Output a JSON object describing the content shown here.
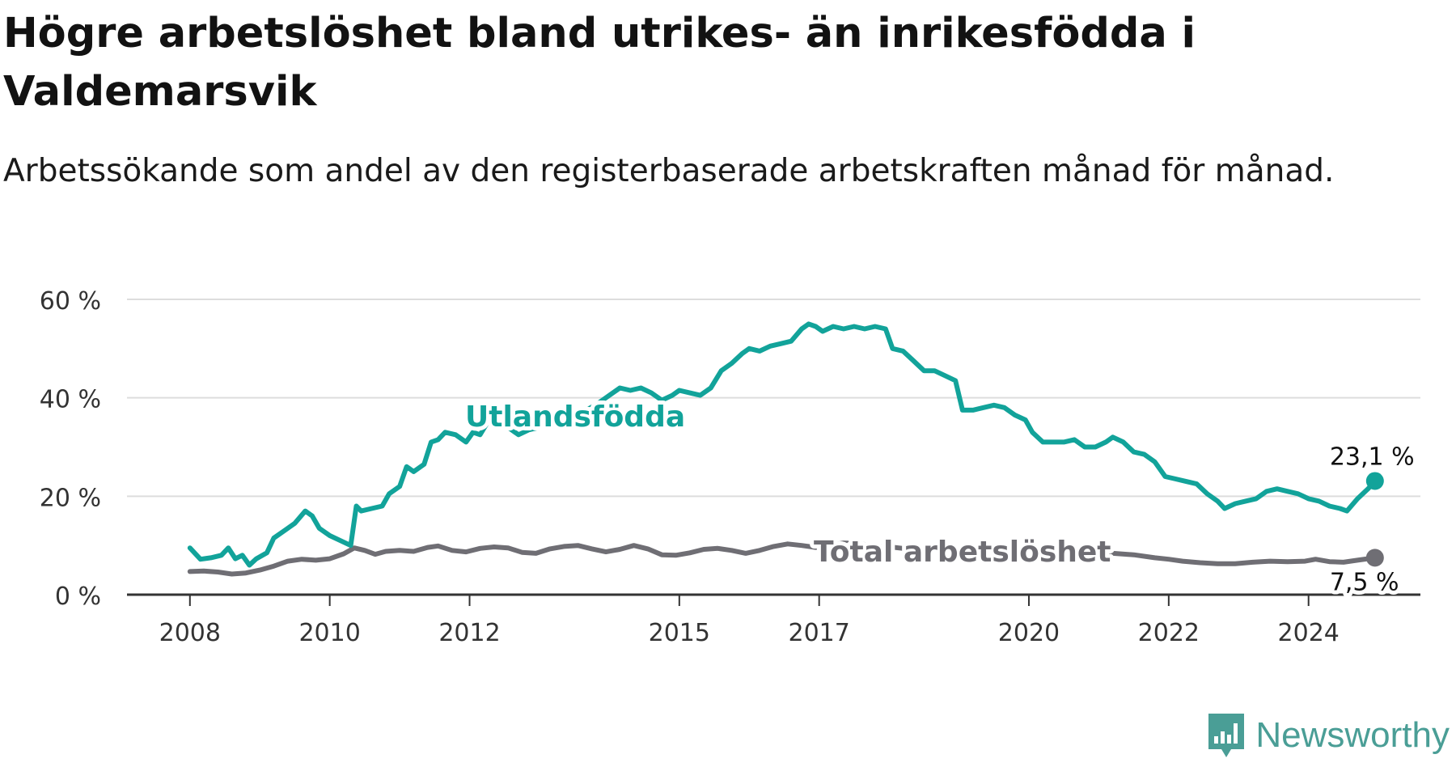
{
  "header": {
    "title": "Högre arbetslöshet bland utrikes- än inrikesfödda i Valdemarsvik",
    "subtitle": "Arbetssökande som andel av den registerbaserade arbetskraften månad för månad."
  },
  "brand": {
    "name": "Newsworthy"
  },
  "colors": {
    "foreign": "#12a39a",
    "total": "#6f6e74",
    "grid": "#dddddd",
    "axis": "#333333"
  },
  "chart_data": {
    "type": "line",
    "title": "Högre arbetslöshet bland utrikes- än inrikesfödda i Valdemarsvik",
    "subtitle": "Arbetssökande som andel av den registerbaserade arbetskraften månad för månad.",
    "xlabel": "",
    "ylabel": "",
    "ylim": [
      0,
      60
    ],
    "xlim": [
      2007.1,
      2025.6
    ],
    "y_ticks": [
      0,
      20,
      40,
      60
    ],
    "y_tick_labels": [
      "0 %",
      "20 %",
      "40 %",
      "60 %"
    ],
    "x_ticks": [
      2008,
      2010,
      2012,
      2015,
      2017,
      2020,
      2022,
      2024
    ],
    "x_tick_labels": [
      "2008",
      "2010",
      "2012",
      "2015",
      "2017",
      "2020",
      "2022",
      "2024"
    ],
    "grid": true,
    "legend": "inline labels",
    "series": [
      {
        "name": "Utlandsfödda",
        "color": "#12a39a",
        "end_label": "23,1 %",
        "points": [
          [
            2008.0,
            9.5
          ],
          [
            2008.15,
            7.2
          ],
          [
            2008.3,
            7.5
          ],
          [
            2008.45,
            8.0
          ],
          [
            2008.55,
            9.5
          ],
          [
            2008.65,
            7.3
          ],
          [
            2008.75,
            8.0
          ],
          [
            2008.85,
            6.0
          ],
          [
            2008.95,
            7.3
          ],
          [
            2009.1,
            8.5
          ],
          [
            2009.2,
            11.5
          ],
          [
            2009.35,
            13.0
          ],
          [
            2009.5,
            14.5
          ],
          [
            2009.65,
            17.0
          ],
          [
            2009.75,
            16.0
          ],
          [
            2009.85,
            13.5
          ],
          [
            2010.0,
            12.0
          ],
          [
            2010.15,
            11.0
          ],
          [
            2010.3,
            10.0
          ],
          [
            2010.38,
            18.0
          ],
          [
            2010.45,
            17.0
          ],
          [
            2010.6,
            17.5
          ],
          [
            2010.75,
            18.0
          ],
          [
            2010.85,
            20.5
          ],
          [
            2011.0,
            22.0
          ],
          [
            2011.1,
            26.0
          ],
          [
            2011.2,
            25.0
          ],
          [
            2011.35,
            26.5
          ],
          [
            2011.45,
            31.0
          ],
          [
            2011.55,
            31.5
          ],
          [
            2011.65,
            33.0
          ],
          [
            2011.8,
            32.5
          ],
          [
            2011.95,
            31.0
          ],
          [
            2012.05,
            33.0
          ],
          [
            2012.15,
            32.5
          ],
          [
            2012.3,
            36.0
          ],
          [
            2012.45,
            34.5
          ],
          [
            2012.55,
            34.0
          ],
          [
            2012.7,
            32.5
          ],
          [
            2012.85,
            33.5
          ],
          [
            2013.0,
            34.0
          ],
          [
            2013.2,
            35.5
          ],
          [
            2013.4,
            36.0
          ],
          [
            2013.6,
            37.0
          ],
          [
            2013.8,
            38.5
          ],
          [
            2014.0,
            40.5
          ],
          [
            2014.15,
            42.0
          ],
          [
            2014.3,
            41.5
          ],
          [
            2014.45,
            42.0
          ],
          [
            2014.6,
            41.0
          ],
          [
            2014.75,
            39.5
          ],
          [
            2014.9,
            40.5
          ],
          [
            2015.0,
            41.5
          ],
          [
            2015.15,
            41.0
          ],
          [
            2015.3,
            40.5
          ],
          [
            2015.45,
            42.0
          ],
          [
            2015.6,
            45.5
          ],
          [
            2015.75,
            47.0
          ],
          [
            2015.9,
            49.0
          ],
          [
            2016.0,
            50.0
          ],
          [
            2016.15,
            49.5
          ],
          [
            2016.3,
            50.5
          ],
          [
            2016.45,
            51.0
          ],
          [
            2016.6,
            51.5
          ],
          [
            2016.75,
            54.0
          ],
          [
            2016.85,
            55.0
          ],
          [
            2016.95,
            54.5
          ],
          [
            2017.05,
            53.5
          ],
          [
            2017.2,
            54.5
          ],
          [
            2017.35,
            54.0
          ],
          [
            2017.5,
            54.5
          ],
          [
            2017.65,
            54.0
          ],
          [
            2017.8,
            54.5
          ],
          [
            2017.95,
            54.0
          ],
          [
            2018.05,
            50.0
          ],
          [
            2018.2,
            49.5
          ],
          [
            2018.35,
            47.5
          ],
          [
            2018.5,
            45.5
          ],
          [
            2018.65,
            45.5
          ],
          [
            2018.8,
            44.5
          ],
          [
            2018.95,
            43.5
          ],
          [
            2019.05,
            37.5
          ],
          [
            2019.2,
            37.5
          ],
          [
            2019.35,
            38.0
          ],
          [
            2019.5,
            38.5
          ],
          [
            2019.65,
            38.0
          ],
          [
            2019.8,
            36.5
          ],
          [
            2019.95,
            35.5
          ],
          [
            2020.05,
            33.0
          ],
          [
            2020.2,
            31.0
          ],
          [
            2020.35,
            31.0
          ],
          [
            2020.5,
            31.0
          ],
          [
            2020.65,
            31.5
          ],
          [
            2020.8,
            30.0
          ],
          [
            2020.95,
            30.0
          ],
          [
            2021.1,
            31.0
          ],
          [
            2021.2,
            32.0
          ],
          [
            2021.35,
            31.0
          ],
          [
            2021.5,
            29.0
          ],
          [
            2021.65,
            28.5
          ],
          [
            2021.8,
            27.0
          ],
          [
            2021.95,
            24.0
          ],
          [
            2022.1,
            23.5
          ],
          [
            2022.25,
            23.0
          ],
          [
            2022.4,
            22.5
          ],
          [
            2022.55,
            20.5
          ],
          [
            2022.7,
            19.0
          ],
          [
            2022.8,
            17.5
          ],
          [
            2022.95,
            18.5
          ],
          [
            2023.1,
            19.0
          ],
          [
            2023.25,
            19.5
          ],
          [
            2023.4,
            21.0
          ],
          [
            2023.55,
            21.5
          ],
          [
            2023.7,
            21.0
          ],
          [
            2023.85,
            20.5
          ],
          [
            2024.0,
            19.5
          ],
          [
            2024.15,
            19.0
          ],
          [
            2024.3,
            18.0
          ],
          [
            2024.45,
            17.5
          ],
          [
            2024.55,
            17.0
          ],
          [
            2024.7,
            19.5
          ],
          [
            2024.85,
            21.5
          ],
          [
            2024.95,
            23.1
          ]
        ]
      },
      {
        "name": "Total arbetslöshet",
        "color": "#6f6e74",
        "end_label": "7,5 %",
        "points": [
          [
            2008.0,
            4.7
          ],
          [
            2008.2,
            4.8
          ],
          [
            2008.4,
            4.6
          ],
          [
            2008.6,
            4.2
          ],
          [
            2008.8,
            4.4
          ],
          [
            2009.0,
            5.0
          ],
          [
            2009.2,
            5.8
          ],
          [
            2009.4,
            6.8
          ],
          [
            2009.6,
            7.2
          ],
          [
            2009.8,
            7.0
          ],
          [
            2010.0,
            7.3
          ],
          [
            2010.2,
            8.3
          ],
          [
            2010.35,
            9.5
          ],
          [
            2010.5,
            9.0
          ],
          [
            2010.65,
            8.2
          ],
          [
            2010.8,
            8.8
          ],
          [
            2011.0,
            9.0
          ],
          [
            2011.2,
            8.8
          ],
          [
            2011.4,
            9.6
          ],
          [
            2011.55,
            9.9
          ],
          [
            2011.75,
            9.0
          ],
          [
            2011.95,
            8.7
          ],
          [
            2012.15,
            9.4
          ],
          [
            2012.35,
            9.7
          ],
          [
            2012.55,
            9.5
          ],
          [
            2012.75,
            8.6
          ],
          [
            2012.95,
            8.4
          ],
          [
            2013.15,
            9.3
          ],
          [
            2013.35,
            9.8
          ],
          [
            2013.55,
            10.0
          ],
          [
            2013.75,
            9.3
          ],
          [
            2013.95,
            8.7
          ],
          [
            2014.15,
            9.2
          ],
          [
            2014.35,
            10.0
          ],
          [
            2014.55,
            9.3
          ],
          [
            2014.75,
            8.1
          ],
          [
            2014.95,
            8.0
          ],
          [
            2015.15,
            8.5
          ],
          [
            2015.35,
            9.2
          ],
          [
            2015.55,
            9.4
          ],
          [
            2015.75,
            9.0
          ],
          [
            2015.95,
            8.4
          ],
          [
            2016.15,
            9.0
          ],
          [
            2016.35,
            9.8
          ],
          [
            2016.55,
            10.3
          ],
          [
            2016.75,
            10.0
          ],
          [
            2016.95,
            9.6
          ],
          [
            2017.15,
            10.0
          ],
          [
            2017.35,
            10.5
          ],
          [
            2017.55,
            10.4
          ],
          [
            2017.75,
            10.0
          ],
          [
            2017.95,
            9.8
          ],
          [
            2018.2,
            9.4
          ],
          [
            2018.5,
            9.2
          ],
          [
            2018.8,
            9.0
          ],
          [
            2019.1,
            9.3
          ],
          [
            2019.4,
            9.0
          ],
          [
            2019.7,
            8.7
          ],
          [
            2020.0,
            9.6
          ],
          [
            2020.3,
            9.4
          ],
          [
            2020.6,
            8.9
          ],
          [
            2020.9,
            8.6
          ],
          [
            2021.2,
            8.4
          ],
          [
            2021.5,
            8.1
          ],
          [
            2021.8,
            7.5
          ],
          [
            2022.0,
            7.2
          ],
          [
            2022.2,
            6.8
          ],
          [
            2022.45,
            6.5
          ],
          [
            2022.7,
            6.3
          ],
          [
            2022.95,
            6.3
          ],
          [
            2023.2,
            6.6
          ],
          [
            2023.45,
            6.8
          ],
          [
            2023.7,
            6.7
          ],
          [
            2023.95,
            6.8
          ],
          [
            2024.1,
            7.2
          ],
          [
            2024.3,
            6.7
          ],
          [
            2024.5,
            6.6
          ],
          [
            2024.7,
            7.0
          ],
          [
            2024.95,
            7.5
          ]
        ]
      }
    ]
  }
}
